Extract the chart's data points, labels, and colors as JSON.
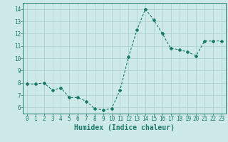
{
  "x": [
    0,
    1,
    2,
    3,
    4,
    5,
    6,
    7,
    8,
    9,
    10,
    11,
    12,
    13,
    14,
    15,
    16,
    17,
    18,
    19,
    20,
    21,
    22,
    23
  ],
  "y": [
    7.9,
    7.9,
    8.0,
    7.4,
    7.6,
    6.8,
    6.8,
    6.5,
    5.9,
    5.8,
    5.9,
    7.4,
    10.1,
    12.3,
    14.0,
    13.1,
    12.0,
    10.8,
    10.7,
    10.5,
    10.2,
    11.4,
    11.4,
    11.4
  ],
  "line_color": "#1a7a6a",
  "marker": "D",
  "marker_size": 2.0,
  "bg_color": "#ceeae8",
  "grid_color": "#b0d4d0",
  "xlabel": "Humidex (Indice chaleur)",
  "xlim": [
    -0.5,
    23.5
  ],
  "ylim": [
    5.5,
    14.5
  ],
  "yticks": [
    6,
    7,
    8,
    9,
    10,
    11,
    12,
    13,
    14
  ],
  "xticks": [
    0,
    1,
    2,
    3,
    4,
    5,
    6,
    7,
    8,
    9,
    10,
    11,
    12,
    13,
    14,
    15,
    16,
    17,
    18,
    19,
    20,
    21,
    22,
    23
  ],
  "tick_label_fontsize": 5.5,
  "xlabel_fontsize": 7.0,
  "line_width": 0.8
}
